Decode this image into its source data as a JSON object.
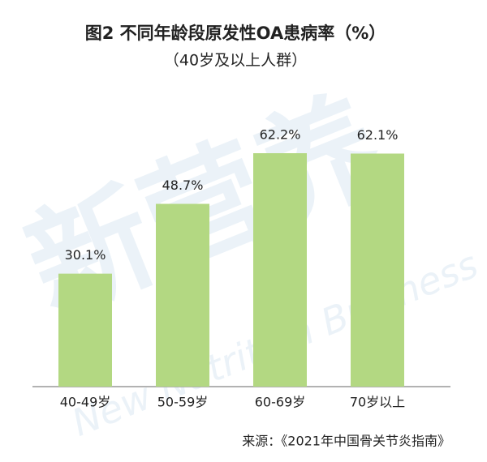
{
  "chart_data": {
    "type": "bar",
    "title": "图2 不同年龄段原发性OA患病率（%）",
    "subtitle": "（40岁及以上人群）",
    "categories": [
      "40-49岁",
      "50-59岁",
      "60-69岁",
      "70岁以上"
    ],
    "values": [
      30.1,
      48.7,
      62.2,
      62.1
    ],
    "value_labels": [
      "30.1%",
      "48.7%",
      "62.2%",
      "62.1%"
    ],
    "color": "#b3d882",
    "source": "来源：《2021年中国骨关节炎指南》",
    "watermark": [
      "新营养",
      "New Nutrition Business"
    ]
  }
}
